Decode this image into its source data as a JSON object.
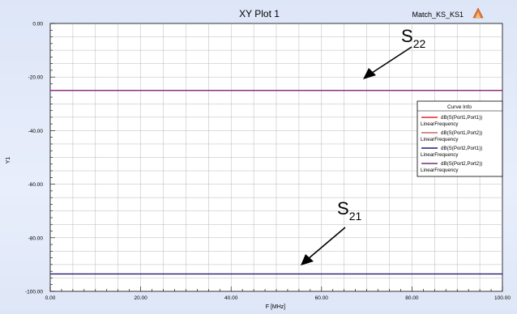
{
  "window": {
    "title": "XY Plot 1",
    "design_name": "Match_KS_KS1",
    "logo_text": "ANSOFT"
  },
  "colors": {
    "background_outer": "#dde6f7",
    "plot_background": "#ffffff",
    "grid": "#b8b8b8",
    "s11": "#e8232a",
    "s12": "#c46a6a",
    "s21": "#1a1a7a",
    "s22": "#7a2a8a",
    "arrow": "#000000"
  },
  "annotations": {
    "s22_label_base": "S",
    "s22_label_sub": "22",
    "s21_label_base": "S",
    "s21_label_sub": "21"
  },
  "legend": {
    "title": "Curve Info",
    "entries": [
      {
        "name": "dB(S(Port1,Port1))",
        "sub": "LinearFrequency",
        "color_key": "s11"
      },
      {
        "name": "dB(S(Port1,Port2))",
        "sub": "LinearFrequency",
        "color_key": "s12"
      },
      {
        "name": "dB(S(Port2,Port1))",
        "sub": "LinearFrequency",
        "color_key": "s21"
      },
      {
        "name": "dB(S(Port2,Port2))",
        "sub": "LinearFrequency",
        "color_key": "s22"
      }
    ]
  },
  "chart_data": {
    "type": "line",
    "title": "XY Plot 1",
    "xlabel": "F [MHz]",
    "ylabel": "Y1",
    "xlim": [
      0,
      100
    ],
    "ylim": [
      -100,
      0
    ],
    "x_ticks": [
      "0.00",
      "20.00",
      "40.00",
      "60.00",
      "80.00",
      "100.00"
    ],
    "x_tick_values": [
      0,
      20,
      40,
      60,
      80,
      100
    ],
    "y_ticks": [
      "0.00",
      "-20.00",
      "-40.00",
      "-60.00",
      "-80.00",
      "-100.00"
    ],
    "y_tick_values": [
      0,
      -20,
      -40,
      -60,
      -80,
      -100
    ],
    "grid": true,
    "legend_position": "right",
    "series": [
      {
        "name": "dB(S(Port1,Port1))",
        "color_key": "s11",
        "x": [
          0,
          100
        ],
        "y": [
          -25,
          -25
        ]
      },
      {
        "name": "dB(S(Port1,Port2))",
        "color_key": "s12",
        "x": [
          0,
          100
        ],
        "y": [
          -93.5,
          -93.5
        ]
      },
      {
        "name": "dB(S(Port2,Port1))",
        "color_key": "s21",
        "x": [
          0,
          100
        ],
        "y": [
          -93.5,
          -93.5
        ]
      },
      {
        "name": "dB(S(Port2,Port2))",
        "color_key": "s22",
        "x": [
          0,
          100
        ],
        "y": [
          -25,
          -25
        ]
      }
    ]
  }
}
